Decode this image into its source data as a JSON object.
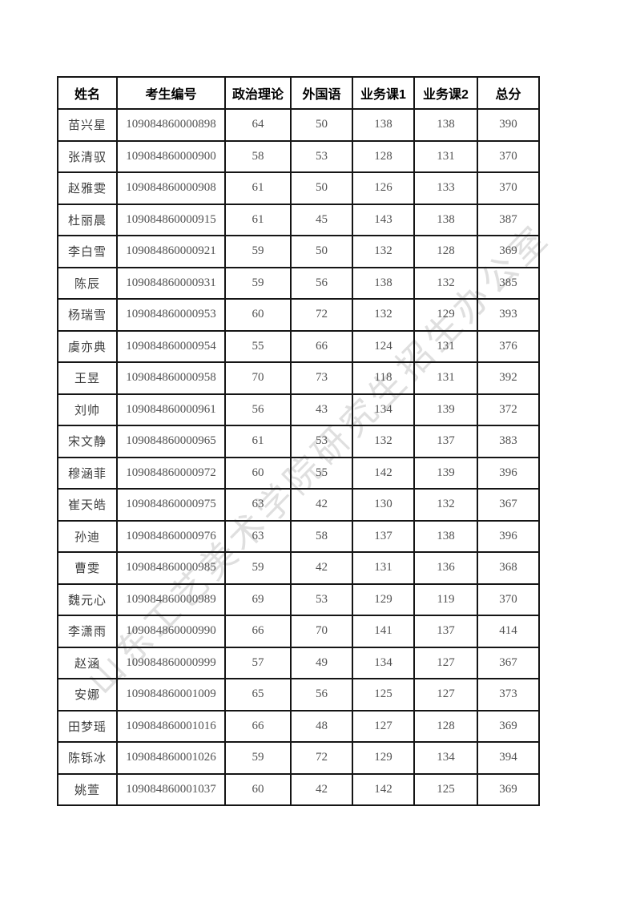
{
  "page": {
    "watermark": "山东工艺美术学院研究生招生办公室"
  },
  "table": {
    "columns": [
      "姓名",
      "考生编号",
      "政治理论",
      "外国语",
      "业务课1",
      "业务课2",
      "总分"
    ],
    "rows": [
      [
        "苗兴星",
        "109084860000898",
        "64",
        "50",
        "138",
        "138",
        "390"
      ],
      [
        "张清驭",
        "109084860000900",
        "58",
        "53",
        "128",
        "131",
        "370"
      ],
      [
        "赵雅雯",
        "109084860000908",
        "61",
        "50",
        "126",
        "133",
        "370"
      ],
      [
        "杜丽晨",
        "109084860000915",
        "61",
        "45",
        "143",
        "138",
        "387"
      ],
      [
        "李白雪",
        "109084860000921",
        "59",
        "50",
        "132",
        "128",
        "369"
      ],
      [
        "陈辰",
        "109084860000931",
        "59",
        "56",
        "138",
        "132",
        "385"
      ],
      [
        "杨瑞雪",
        "109084860000953",
        "60",
        "72",
        "132",
        "129",
        "393"
      ],
      [
        "虞亦典",
        "109084860000954",
        "55",
        "66",
        "124",
        "131",
        "376"
      ],
      [
        "王昱",
        "109084860000958",
        "70",
        "73",
        "118",
        "131",
        "392"
      ],
      [
        "刘帅",
        "109084860000961",
        "56",
        "43",
        "134",
        "139",
        "372"
      ],
      [
        "宋文静",
        "109084860000965",
        "61",
        "53",
        "132",
        "137",
        "383"
      ],
      [
        "穆涵菲",
        "109084860000972",
        "60",
        "55",
        "142",
        "139",
        "396"
      ],
      [
        "崔天皓",
        "109084860000975",
        "63",
        "42",
        "130",
        "132",
        "367"
      ],
      [
        "孙迪",
        "109084860000976",
        "63",
        "58",
        "137",
        "138",
        "396"
      ],
      [
        "曹雯",
        "109084860000985",
        "59",
        "42",
        "131",
        "136",
        "368"
      ],
      [
        "魏元心",
        "109084860000989",
        "69",
        "53",
        "129",
        "119",
        "370"
      ],
      [
        "李潇雨",
        "109084860000990",
        "66",
        "70",
        "141",
        "137",
        "414"
      ],
      [
        "赵涵",
        "109084860000999",
        "57",
        "49",
        "134",
        "127",
        "367"
      ],
      [
        "安娜",
        "109084860001009",
        "65",
        "56",
        "125",
        "127",
        "373"
      ],
      [
        "田梦瑶",
        "109084860001016",
        "66",
        "48",
        "127",
        "128",
        "369"
      ],
      [
        "陈铄冰",
        "109084860001026",
        "59",
        "72",
        "129",
        "134",
        "394"
      ],
      [
        "姚萱",
        "109084860001037",
        "60",
        "42",
        "142",
        "125",
        "369"
      ]
    ]
  },
  "colors": {
    "table_border": "#151515",
    "header_text": "#000000",
    "body_text": "#525252",
    "watermark": "#b8b8b8"
  }
}
